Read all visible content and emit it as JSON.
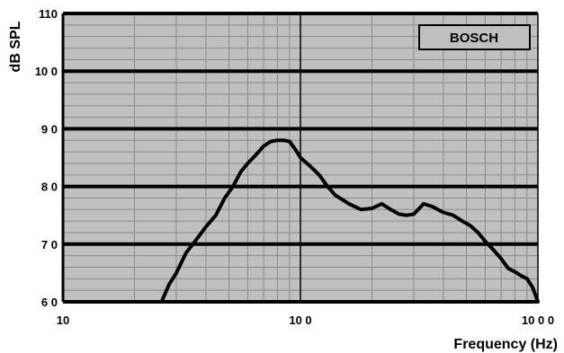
{
  "chart_data": {
    "type": "line",
    "title": "",
    "xlabel": "Frequency (Hz)",
    "ylabel": "dB SPL",
    "x_scale": "log",
    "xlim": [
      10,
      1000
    ],
    "ylim": [
      60,
      110
    ],
    "x_ticks": [
      10,
      100,
      1000
    ],
    "x_tick_labels": [
      "10",
      "10 0",
      "10 0 0"
    ],
    "y_ticks": [
      60,
      70,
      80,
      90,
      100,
      110
    ],
    "y_tick_labels": [
      "6 0",
      "7 0",
      "8 0",
      "9 0",
      "10 0",
      "110"
    ],
    "grid": true,
    "legend_position": "top-right",
    "series": [
      {
        "name": "BOSCH",
        "color": "#000000",
        "x": [
          26,
          28,
          30,
          33,
          36,
          40,
          44,
          48,
          52,
          56,
          60,
          65,
          70,
          75,
          80,
          85,
          90,
          95,
          100,
          110,
          120,
          130,
          140,
          160,
          180,
          200,
          220,
          240,
          260,
          280,
          300,
          330,
          360,
          400,
          440,
          480,
          520,
          560,
          600,
          650,
          700,
          750,
          800,
          850,
          900,
          950,
          1000
        ],
        "y": [
          60,
          63,
          65,
          68.5,
          70.5,
          73,
          75,
          78,
          80,
          82.5,
          84,
          85.5,
          87,
          87.8,
          88,
          88,
          87.8,
          86.5,
          85,
          83.5,
          82,
          80,
          78.5,
          77,
          76,
          76.2,
          77,
          76,
          75.2,
          75,
          75.2,
          77,
          76.5,
          75.5,
          75,
          74,
          73.2,
          72,
          70.5,
          69,
          67.5,
          65.8,
          65.2,
          64.5,
          64,
          62.5,
          60
        ]
      }
    ]
  },
  "colors": {
    "plot_background": "#c0c0c0",
    "major_grid": "#000000",
    "minor_grid": "#8a8a8a",
    "line": "#000000",
    "legend_background": "#c0c0c0"
  }
}
